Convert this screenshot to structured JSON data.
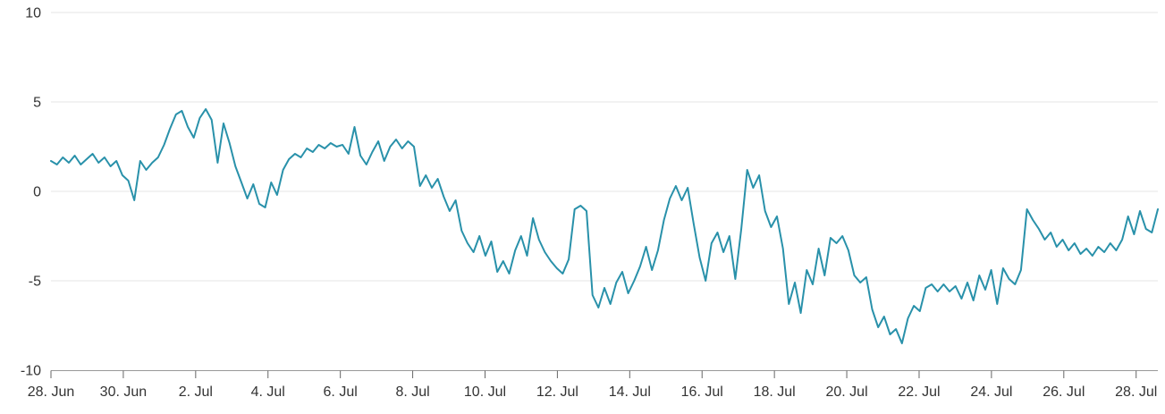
{
  "chart_data": {
    "type": "line",
    "title": "",
    "xlabel": "",
    "ylabel": "",
    "legend": "none",
    "grid": "horizontal",
    "ylim": [
      -10,
      10
    ],
    "y_ticks": [
      10,
      5,
      0,
      -5,
      -10
    ],
    "y_tick_labels": [
      "10",
      "5",
      "0",
      "-5",
      "-10"
    ],
    "x_tick_labels": [
      "28. Jun",
      "30. Jun",
      "2. Jul",
      "4. Jul",
      "6. Jul",
      "8. Jul",
      "10. Jul",
      "12. Jul",
      "14. Jul",
      "16. Jul",
      "18. Jul",
      "20. Jul",
      "22. Jul",
      "24. Jul",
      "26. Jul",
      "28. Jul"
    ],
    "x_tick_days": [
      0,
      2,
      4,
      6,
      8,
      10,
      12,
      14,
      16,
      18,
      20,
      22,
      24,
      26,
      28,
      30
    ],
    "x_total_days": 30.6,
    "colors": {
      "line": "#2991aa",
      "grid": "#e6e6e6",
      "axis": "#999999",
      "tick": "#666666",
      "label": "#333333"
    },
    "series": [
      {
        "name": "",
        "color": "#2991aa",
        "x_start_day": 0,
        "x_end_day": 30.6,
        "values": [
          1.7,
          1.5,
          1.9,
          1.6,
          2.0,
          1.5,
          1.8,
          2.1,
          1.6,
          1.9,
          1.4,
          1.7,
          0.9,
          0.6,
          -0.5,
          1.7,
          1.2,
          1.6,
          1.9,
          2.6,
          3.5,
          4.3,
          4.5,
          3.6,
          3.0,
          4.1,
          4.6,
          4.0,
          1.6,
          3.8,
          2.7,
          1.4,
          0.5,
          -0.4,
          0.4,
          -0.7,
          -0.9,
          0.5,
          -0.2,
          1.2,
          1.8,
          2.1,
          1.9,
          2.4,
          2.2,
          2.6,
          2.4,
          2.7,
          2.5,
          2.6,
          2.1,
          3.6,
          2.0,
          1.5,
          2.2,
          2.8,
          1.7,
          2.5,
          2.9,
          2.4,
          2.8,
          2.5,
          0.3,
          0.9,
          0.2,
          0.7,
          -0.3,
          -1.1,
          -0.5,
          -2.2,
          -2.9,
          -3.4,
          -2.5,
          -3.6,
          -2.8,
          -4.5,
          -3.9,
          -4.6,
          -3.3,
          -2.5,
          -3.6,
          -1.5,
          -2.7,
          -3.4,
          -3.9,
          -4.3,
          -4.6,
          -3.8,
          -1.0,
          -0.8,
          -1.1,
          -5.8,
          -6.5,
          -5.4,
          -6.3,
          -5.1,
          -4.5,
          -5.7,
          -5.0,
          -4.2,
          -3.1,
          -4.4,
          -3.3,
          -1.6,
          -0.4,
          0.3,
          -0.5,
          0.2,
          -1.8,
          -3.7,
          -5.0,
          -2.9,
          -2.3,
          -3.4,
          -2.5,
          -4.9,
          -2.1,
          1.2,
          0.2,
          0.9,
          -1.1,
          -2.0,
          -1.4,
          -3.2,
          -6.3,
          -5.1,
          -6.8,
          -4.4,
          -5.2,
          -3.2,
          -4.7,
          -2.6,
          -2.9,
          -2.5,
          -3.3,
          -4.7,
          -5.1,
          -4.8,
          -6.6,
          -7.6,
          -7.0,
          -8.0,
          -7.7,
          -8.5,
          -7.1,
          -6.4,
          -6.7,
          -5.4,
          -5.2,
          -5.6,
          -5.2,
          -5.6,
          -5.3,
          -6.0,
          -5.1,
          -6.1,
          -4.7,
          -5.5,
          -4.4,
          -6.3,
          -4.3,
          -4.9,
          -5.2,
          -4.4,
          -1.0,
          -1.6,
          -2.1,
          -2.7,
          -2.3,
          -3.1,
          -2.7,
          -3.3,
          -2.9,
          -3.5,
          -3.2,
          -3.6,
          -3.1,
          -3.4,
          -2.9,
          -3.3,
          -2.7,
          -1.4,
          -2.4,
          -1.1,
          -2.1,
          -2.3,
          -1.0
        ]
      }
    ]
  }
}
